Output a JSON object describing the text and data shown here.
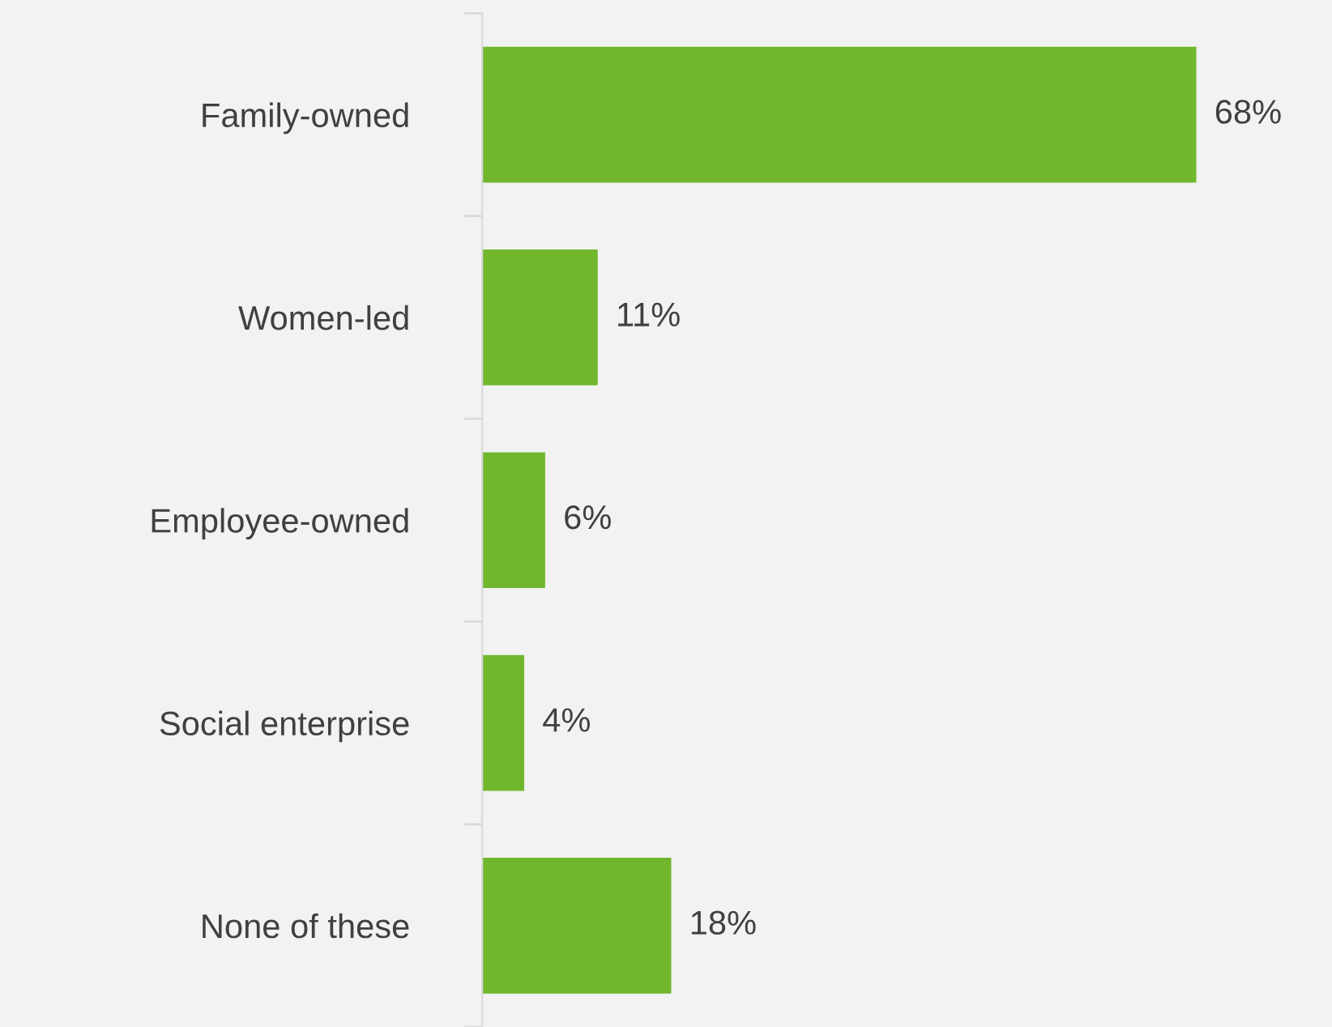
{
  "chart_data": {
    "type": "bar",
    "orientation": "horizontal",
    "categories": [
      "Family-owned",
      "Women-led",
      "Employee-owned",
      "Social enterprise",
      "None of these"
    ],
    "values": [
      68,
      11,
      6,
      4,
      18
    ],
    "value_labels": [
      "68%",
      "11%",
      "6%",
      "4%",
      "18%"
    ],
    "color": "#70b72d",
    "grid": false,
    "legend": false
  }
}
